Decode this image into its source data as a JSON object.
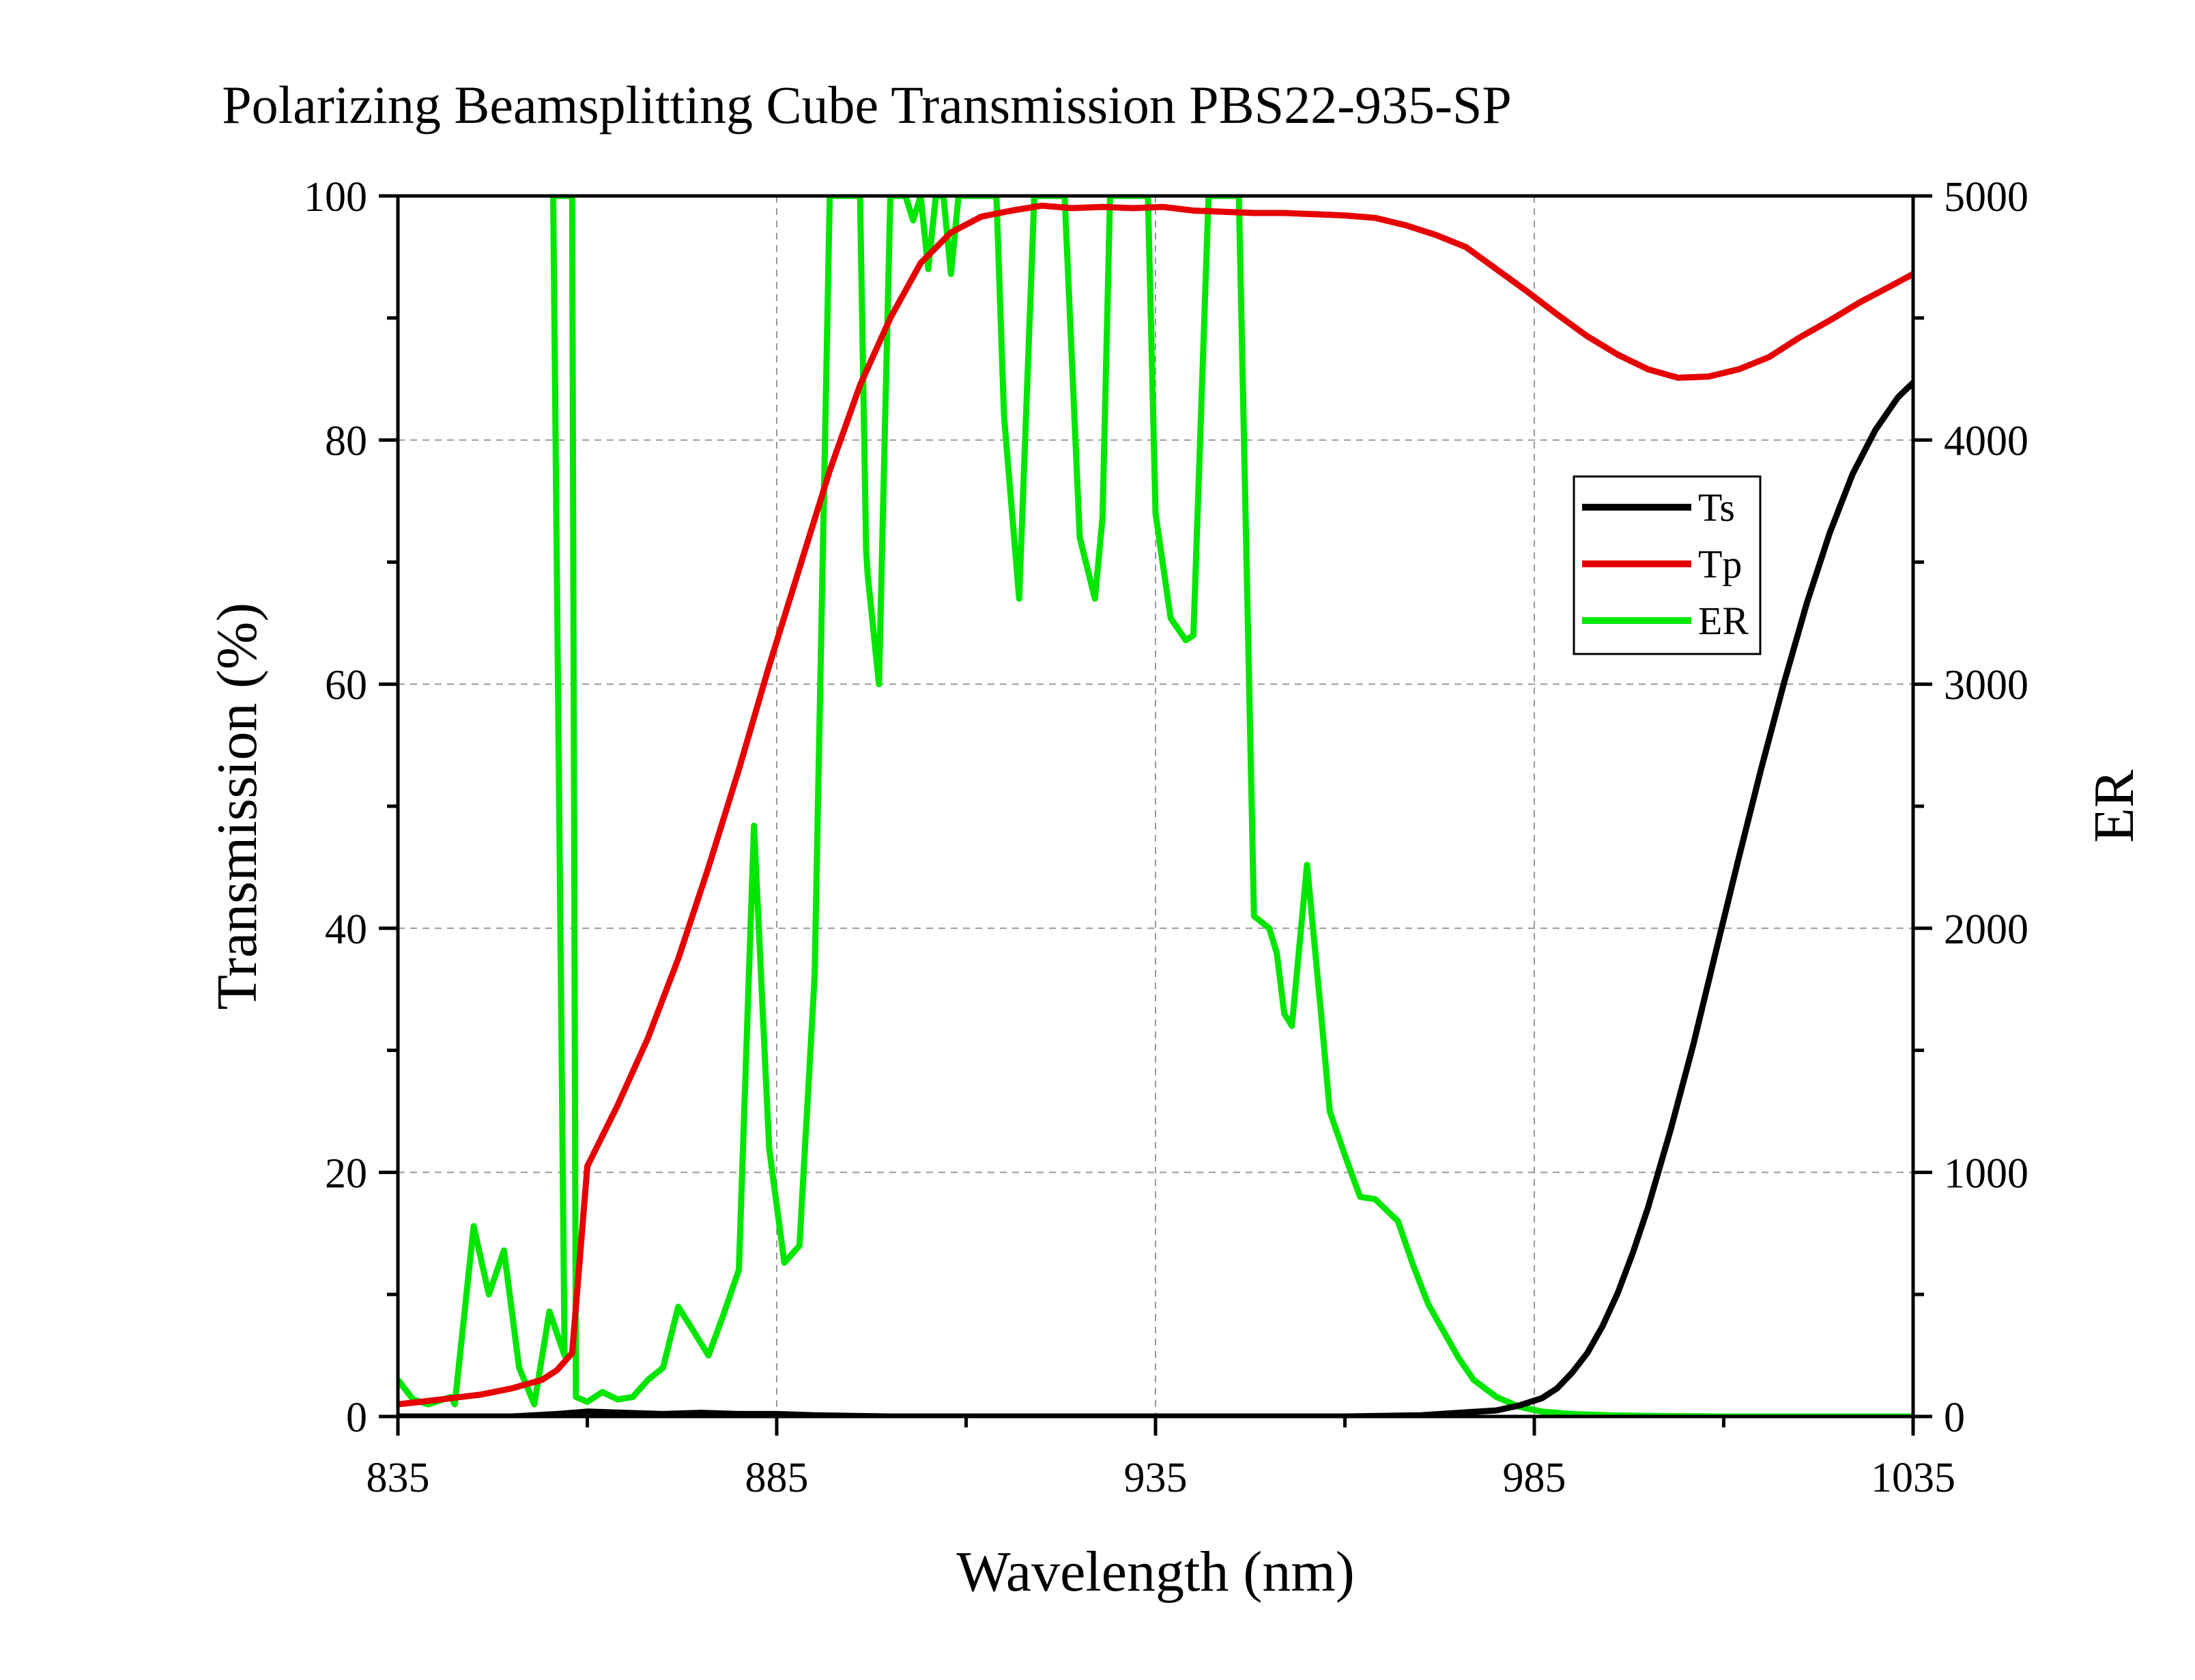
{
  "chart_data": {
    "type": "line",
    "title": "Polarizing Beamsplitting Cube Transmission PBS22-935-SP",
    "xlabel": "Wavelength (nm)",
    "ylabel": "Transmission (%)",
    "y2label": "ER",
    "xlim": [
      835,
      1035
    ],
    "ylim": [
      0,
      100
    ],
    "y2lim": [
      0,
      5000
    ],
    "xticks": [
      835,
      885,
      935,
      985,
      1035
    ],
    "yticks": [
      0,
      20,
      40,
      60,
      80,
      100
    ],
    "y2ticks": [
      0,
      1000,
      2000,
      3000,
      4000,
      5000
    ],
    "grid": true,
    "legend_position": "right-upper",
    "colors": {
      "Ts": "#000000",
      "Tp": "#e60000",
      "ER": "#00e600"
    },
    "series": [
      {
        "name": "Ts",
        "axis": "left",
        "x": [
          835,
          850,
          856,
          860,
          865,
          870,
          875,
          880,
          885,
          890,
          900,
          920,
          940,
          960,
          970,
          975,
          980,
          983,
          986,
          988,
          990,
          992,
          994,
          996,
          998,
          1000,
          1003,
          1006,
          1009,
          1012,
          1015,
          1018,
          1021,
          1024,
          1027,
          1030,
          1033,
          1035
        ],
        "values": [
          0,
          0,
          0.2,
          0.4,
          0.3,
          0.2,
          0.3,
          0.2,
          0.2,
          0.1,
          0,
          0,
          0,
          0,
          0.1,
          0.3,
          0.5,
          0.9,
          1.5,
          2.3,
          3.6,
          5.2,
          7.4,
          10.1,
          13.4,
          17.1,
          23.5,
          30.5,
          38.2,
          45.8,
          53.2,
          60.2,
          66.7,
          72.4,
          77.2,
          80.8,
          83.5,
          84.7
        ]
      },
      {
        "name": "Tp",
        "axis": "left",
        "x": [
          835,
          838,
          842,
          846,
          850,
          854,
          856,
          858,
          860,
          864,
          868,
          872,
          876,
          880,
          884,
          888,
          892,
          896,
          900,
          904,
          908,
          912,
          916,
          920,
          924,
          928,
          932,
          936,
          940,
          944,
          948,
          952,
          956,
          960,
          964,
          968,
          972,
          976,
          980,
          984,
          988,
          992,
          996,
          1000,
          1004,
          1008,
          1012,
          1016,
          1020,
          1024,
          1028,
          1032,
          1035
        ],
        "values": [
          1.0,
          1.2,
          1.5,
          1.8,
          2.3,
          3.0,
          3.8,
          5.2,
          20.5,
          25.5,
          31.0,
          37.5,
          45.0,
          53.0,
          61.5,
          69.5,
          77.5,
          84.5,
          90.0,
          94.5,
          97.0,
          98.3,
          98.8,
          99.2,
          99.0,
          99.1,
          99.0,
          99.1,
          98.8,
          98.7,
          98.6,
          98.6,
          98.5,
          98.4,
          98.2,
          97.6,
          96.8,
          95.8,
          94.0,
          92.2,
          90.3,
          88.5,
          87.0,
          85.8,
          85.1,
          85.2,
          85.8,
          86.8,
          88.4,
          89.8,
          91.3,
          92.6,
          93.6
        ]
      },
      {
        "name": "ER",
        "axis": "right",
        "x": [
          835,
          837,
          839,
          842,
          842.5,
          845,
          847,
          849,
          851,
          853,
          855,
          857,
          855.5,
          857.5,
          858,
          858.5,
          860,
          862,
          864,
          866,
          868,
          870,
          872,
          874,
          876,
          878,
          880,
          882,
          884,
          886,
          888,
          890,
          892,
          894,
          895,
          896,
          896.8,
          897,
          898.5,
          900,
          902,
          903,
          904,
          905,
          906,
          907,
          908,
          909,
          911,
          913,
          914,
          915,
          917,
          919,
          921,
          923,
          925,
          927,
          928,
          929,
          932,
          934,
          935,
          937,
          939,
          940,
          942,
          944,
          946,
          948,
          950,
          951,
          952,
          953,
          955,
          957,
          958,
          960,
          962,
          964,
          967,
          969,
          971,
          973,
          975,
          977,
          980,
          983,
          986,
          990,
          995,
          1000,
          1005,
          1010,
          1015,
          1020,
          1025,
          1030,
          1035
        ],
        "values": [
          150,
          70,
          50,
          80,
          50,
          780,
          500,
          680,
          200,
          50,
          430,
          250,
          5000,
          5000,
          5000,
          80,
          60,
          100,
          70,
          80,
          150,
          200,
          450,
          350,
          250,
          420,
          600,
          2420,
          1100,
          630,
          700,
          1800,
          5000,
          5000,
          5000,
          5000,
          3550,
          3450,
          3000,
          5000,
          5000,
          4900,
          5000,
          4700,
          5000,
          5000,
          4680,
          5000,
          5000,
          5000,
          5000,
          4100,
          3350,
          5000,
          5000,
          5000,
          3600,
          3350,
          3680,
          5000,
          5000,
          5000,
          3700,
          3270,
          3180,
          3200,
          5000,
          5000,
          5000,
          2050,
          2000,
          1900,
          1650,
          1600,
          2260,
          1600,
          1250,
          1070,
          900,
          890,
          800,
          620,
          460,
          350,
          240,
          150,
          80,
          40,
          20,
          10,
          5,
          2,
          1,
          0,
          0,
          0,
          0,
          0,
          0
        ]
      }
    ]
  }
}
